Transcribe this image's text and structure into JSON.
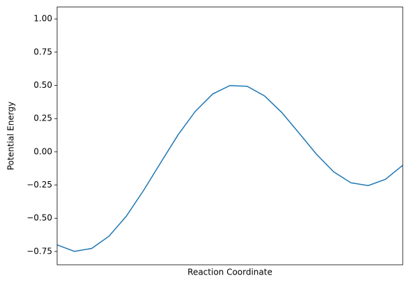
{
  "chart_data": {
    "type": "line",
    "x_label": "Reaction Coordinate",
    "y_label": "Potential Energy",
    "x": [
      0,
      0.05,
      0.1,
      0.15,
      0.2,
      0.25,
      0.3,
      0.35,
      0.4,
      0.45,
      0.5,
      0.55,
      0.6,
      0.65,
      0.7,
      0.75,
      0.8,
      0.85,
      0.9,
      0.95,
      1.0
    ],
    "series": [
      {
        "color": "#1f77b4",
        "values": [
          -0.7,
          -0.749,
          -0.727,
          -0.635,
          -0.485,
          -0.291,
          -0.08,
          0.128,
          0.305,
          0.435,
          0.499,
          0.493,
          0.421,
          0.296,
          0.141,
          -0.017,
          -0.15,
          -0.233,
          -0.254,
          -0.207,
          -0.101
        ]
      }
    ],
    "xlim": [
      0,
      1
    ],
    "ylim": [
      -0.85,
      1.09
    ],
    "yticks": [
      {
        "value": -0.75,
        "label": "−0.75"
      },
      {
        "value": -0.5,
        "label": "−0.50"
      },
      {
        "value": -0.25,
        "label": "−0.25"
      },
      {
        "value": 0,
        "label": "0.00"
      },
      0.25,
      {
        "value": 0.5,
        "label": "0.50"
      },
      0.75,
      {
        "value": 1,
        "label": "1.00"
      }
    ]
  }
}
